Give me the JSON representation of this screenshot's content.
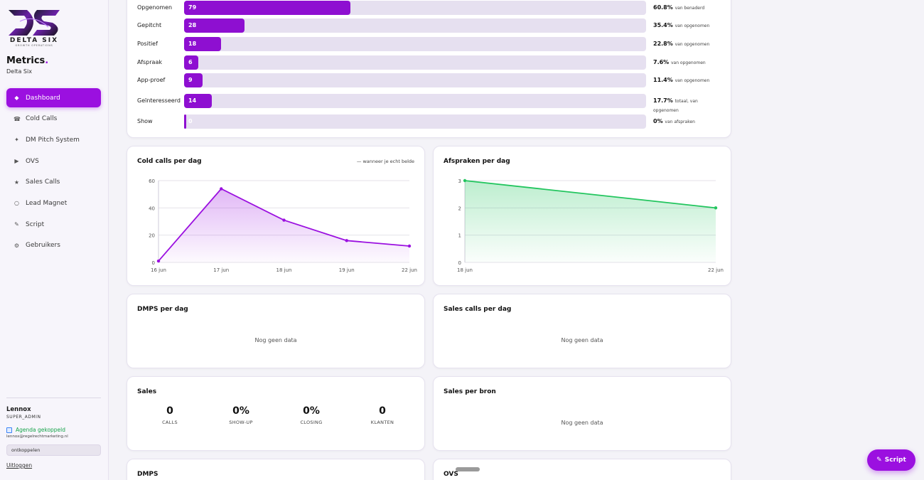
{
  "brand": {
    "logo_word": "DELTA SIX",
    "logo_sub": "GROWTH OPERATIONS",
    "app_title": "Metrics",
    "app_title_dot": ".",
    "app_subtitle": "Delta Six",
    "accent": "#9b10e0"
  },
  "nav": [
    {
      "label": "Dashboard",
      "icon": "diamond-icon",
      "glyph": "◆",
      "active": true
    },
    {
      "label": "Cold Calls",
      "icon": "phone-icon",
      "glyph": "☎",
      "active": false
    },
    {
      "label": "DM Pitch System",
      "icon": "sparkle-icon",
      "glyph": "✦",
      "active": false
    },
    {
      "label": "OVS",
      "icon": "play-icon",
      "glyph": "▶",
      "active": false
    },
    {
      "label": "Sales Calls",
      "icon": "star-icon",
      "glyph": "★",
      "active": false
    },
    {
      "label": "Lead Magnet",
      "icon": "circle-icon",
      "glyph": "○",
      "active": false
    },
    {
      "label": "Script",
      "icon": "pen-icon",
      "glyph": "✎",
      "active": false
    },
    {
      "label": "Gebruikers",
      "icon": "gear-icon",
      "glyph": "⚙",
      "active": false
    }
  ],
  "user": {
    "name": "Lennox",
    "role": "SUPER_ADMIN",
    "agenda": "Agenda gekoppeld",
    "email": "lennox@regelrechtmarketing.nl",
    "disconnect": "ontkoppelen",
    "logout": "Uitloggen"
  },
  "funnel": [
    {
      "label": "Opgenomen",
      "value": 79,
      "fill": 0.36,
      "pct": "60.8%",
      "note": "van benaderd"
    },
    {
      "label": "Gepitcht",
      "value": 28,
      "fill": 0.13,
      "pct": "35.4%",
      "note": "van opgenomen"
    },
    {
      "label": "Positief",
      "value": 18,
      "fill": 0.08,
      "pct": "22.8%",
      "note": "van opgenomen"
    },
    {
      "label": "Afspraak",
      "value": 6,
      "fill": 0.03,
      "pct": "7.6%",
      "note": "van opgenomen"
    },
    {
      "label": "App-proef",
      "value": 9,
      "fill": 0.04,
      "pct": "11.4%",
      "note": "van opgenomen"
    },
    {
      "label": "Geïnteresseerd",
      "value": 14,
      "fill": 0.06,
      "pct": "17.7%",
      "note": "totaal, van opgenomen"
    },
    {
      "label": "Show",
      "value": 0,
      "fill": 0.005,
      "pct": "0%",
      "note": "van afspraken"
    }
  ],
  "cards": {
    "cold_calls": {
      "title": "Cold calls per dag",
      "note": "— wanneer je echt belde"
    },
    "afspraken": {
      "title": "Afspraken per dag"
    },
    "dmps_dag": {
      "title": "DMPS per dag",
      "empty": "Nog geen data"
    },
    "sales_calls_dag": {
      "title": "Sales calls per dag",
      "empty": "Nog geen data"
    },
    "sales": {
      "title": "Sales",
      "stats": [
        {
          "value": "0",
          "label": "CALLS"
        },
        {
          "value": "0%",
          "label": "SHOW-UP"
        },
        {
          "value": "0%",
          "label": "CLOSING"
        },
        {
          "value": "0",
          "label": "KLANTEN"
        }
      ]
    },
    "sales_bron": {
      "title": "Sales per bron",
      "empty": "Nog geen data"
    },
    "dmps": {
      "title": "DMPS"
    },
    "ovs": {
      "title": "OVS"
    }
  },
  "script_button": {
    "label": "Script",
    "icon": "pen-icon"
  },
  "chart_data": [
    {
      "type": "area",
      "title": "Cold calls per dag",
      "x": [
        "16 jun",
        "17 jun",
        "18 jun",
        "19 jun",
        "22 jun"
      ],
      "series": [
        {
          "values": [
            1,
            54,
            31,
            16,
            12
          ]
        }
      ],
      "ylim": [
        0,
        60
      ],
      "yticks": [
        0,
        20,
        40,
        60
      ],
      "grid": true,
      "color": "#9b10e0"
    },
    {
      "type": "area",
      "title": "Afspraken per dag",
      "x": [
        "18 jun",
        "22 jun"
      ],
      "series": [
        {
          "values": [
            3,
            2
          ]
        }
      ],
      "ylim": [
        0,
        3
      ],
      "yticks": [
        0,
        1,
        2,
        3
      ],
      "grid": true,
      "color": "#22c55e"
    }
  ]
}
